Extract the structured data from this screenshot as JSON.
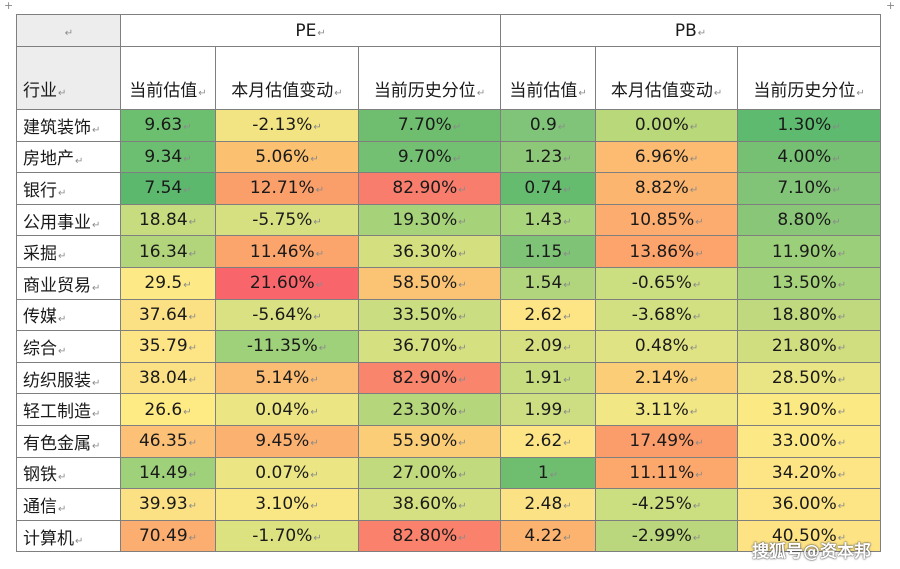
{
  "pilcrow": "↵",
  "header_groups": {
    "pe": "PE",
    "pb": "PB"
  },
  "columns": {
    "industry": "行业",
    "pe_current": "当前估值",
    "pe_change": "本月估值变动",
    "pe_percentile": "当前历史分位",
    "pb_current": "当前估值",
    "pb_change": "本月估值变动",
    "pb_percentile": "当前历史分位"
  },
  "rows": [
    {
      "industry": "建筑装饰",
      "pe": "9.63",
      "pe_chg": "-2.13%",
      "pe_pct": "7.70%",
      "pb": "0.9",
      "pb_chg": "0.00%",
      "pb_pct": "1.30%"
    },
    {
      "industry": "房地产",
      "pe": "9.34",
      "pe_chg": "5.06%",
      "pe_pct": "9.70%",
      "pb": "1.23",
      "pb_chg": "6.96%",
      "pb_pct": "4.00%"
    },
    {
      "industry": "银行",
      "pe": "7.54",
      "pe_chg": "12.71%",
      "pe_pct": "82.90%",
      "pb": "0.74",
      "pb_chg": "8.82%",
      "pb_pct": "7.10%"
    },
    {
      "industry": "公用事业",
      "pe": "18.84",
      "pe_chg": "-5.75%",
      "pe_pct": "19.30%",
      "pb": "1.43",
      "pb_chg": "10.85%",
      "pb_pct": "8.80%"
    },
    {
      "industry": "采掘",
      "pe": "16.34",
      "pe_chg": "11.46%",
      "pe_pct": "36.30%",
      "pb": "1.15",
      "pb_chg": "13.86%",
      "pb_pct": "11.90%"
    },
    {
      "industry": "商业贸易",
      "pe": "29.5",
      "pe_chg": "21.60%",
      "pe_pct": "58.50%",
      "pb": "1.54",
      "pb_chg": "-0.65%",
      "pb_pct": "13.50%"
    },
    {
      "industry": "传媒",
      "pe": "37.64",
      "pe_chg": "-5.64%",
      "pe_pct": "33.50%",
      "pb": "2.62",
      "pb_chg": "-3.68%",
      "pb_pct": "18.80%"
    },
    {
      "industry": "综合",
      "pe": "35.79",
      "pe_chg": "-11.35%",
      "pe_pct": "36.70%",
      "pb": "2.09",
      "pb_chg": "0.48%",
      "pb_pct": "21.80%"
    },
    {
      "industry": "纺织服装",
      "pe": "38.04",
      "pe_chg": "5.14%",
      "pe_pct": "82.90%",
      "pb": "1.91",
      "pb_chg": "2.14%",
      "pb_pct": "28.50%"
    },
    {
      "industry": "轻工制造",
      "pe": "26.6",
      "pe_chg": "0.04%",
      "pe_pct": "23.30%",
      "pb": "1.99",
      "pb_chg": "3.11%",
      "pb_pct": "31.90%"
    },
    {
      "industry": "有色金属",
      "pe": "46.35",
      "pe_chg": "9.45%",
      "pe_pct": "55.90%",
      "pb": "2.62",
      "pb_chg": "17.49%",
      "pb_pct": "33.00%"
    },
    {
      "industry": "钢铁",
      "pe": "14.49",
      "pe_chg": "0.07%",
      "pe_pct": "27.00%",
      "pb": "1",
      "pb_chg": "11.11%",
      "pb_pct": "34.20%"
    },
    {
      "industry": "通信",
      "pe": "39.93",
      "pe_chg": "3.10%",
      "pe_pct": "38.60%",
      "pb": "2.48",
      "pb_chg": "-4.25%",
      "pb_pct": "36.00%"
    },
    {
      "industry": "计算机",
      "pe": "70.49",
      "pe_chg": "-1.70%",
      "pe_pct": "82.80%",
      "pb": "4.22",
      "pb_chg": "-2.99%",
      "pb_pct": "40.50%"
    }
  ],
  "cell_colors": [
    [
      "#6dbf70",
      "#f2e482",
      "#6fbe6f",
      "#80c47a",
      "#b9d879",
      "#5dba6e"
    ],
    [
      "#6cbe70",
      "#fbc070",
      "#74c072",
      "#8cc878",
      "#fdbb72",
      "#76c073"
    ],
    [
      "#5bb86d",
      "#fa9e6a",
      "#f97d6c",
      "#65bc6f",
      "#fbb56f",
      "#82c477"
    ],
    [
      "#c7dc7e",
      "#d6e081",
      "#a6d27a",
      "#a8d47b",
      "#fcac6e",
      "#89c677"
    ],
    [
      "#b2d57c",
      "#fba56c",
      "#d4df80",
      "#7fc377",
      "#fda36c",
      "#9ccf7a"
    ],
    [
      "#fde985",
      "#f8666b",
      "#fbc474",
      "#b1d57c",
      "#cbde80",
      "#a5d27b"
    ],
    [
      "#fce184",
      "#d9e183",
      "#cadd80",
      "#fde586",
      "#d3e082",
      "#c0d97e"
    ],
    [
      "#fde586",
      "#9fd07a",
      "#d5e081",
      "#d6e081",
      "#dfe383",
      "#d0de80"
    ],
    [
      "#fce184",
      "#fbbc73",
      "#f9856c",
      "#c7dc7f",
      "#fbcd77",
      "#e9e584"
    ],
    [
      "#ffeb84",
      "#ebe683",
      "#b6d67c",
      "#ccde81",
      "#f1e784",
      "#fbe984"
    ],
    [
      "#fcc076",
      "#fbb170",
      "#fbcd77",
      "#fde586",
      "#fb9d6a",
      "#fde886"
    ],
    [
      "#9fd07a",
      "#ebe683",
      "#c2da7e",
      "#6fbe70",
      "#fca86d",
      "#fde485"
    ],
    [
      "#fce084",
      "#f8e784",
      "#d4e081",
      "#fbe385",
      "#cbde80",
      "#fde484"
    ],
    [
      "#fbae6f",
      "#dde281",
      "#fa826c",
      "#fbb36f",
      "#bbd77d",
      "#fde384"
    ]
  ],
  "watermark": "搜狐号@资本邦"
}
